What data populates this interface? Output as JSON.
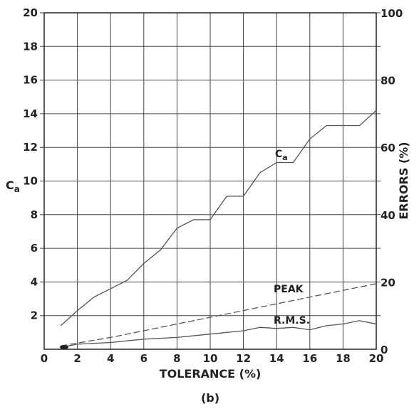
{
  "chart_data": {
    "type": "line",
    "panel_label": "(b)",
    "xlabel": "TOLERANCE (%)",
    "ylabel_left": "C",
    "ylabel_left_sub": "a",
    "ylabel_right": "ERRORS (%)",
    "xlim": [
      0,
      20
    ],
    "ylim_left": [
      0,
      20
    ],
    "ylim_right": [
      0,
      100
    ],
    "x_ticks": [
      0,
      2,
      4,
      6,
      8,
      10,
      12,
      14,
      16,
      18,
      20
    ],
    "y_left_ticks": [
      2,
      4,
      6,
      8,
      10,
      12,
      14,
      16,
      18,
      20
    ],
    "y_right_ticks": [
      0,
      20,
      40,
      60,
      80,
      100
    ],
    "grid": true,
    "series": [
      {
        "name": "C",
        "name_sub": "a",
        "axis": "left",
        "style": "solid",
        "x": [
          1,
          2,
          3,
          4,
          5,
          6,
          7,
          8,
          9,
          10,
          11,
          12,
          13,
          14,
          15,
          16,
          17,
          18,
          19,
          20
        ],
        "y": [
          1.4,
          2.3,
          3.1,
          3.6,
          4.1,
          5.1,
          5.9,
          7.2,
          7.7,
          7.7,
          9.1,
          9.1,
          10.5,
          11.1,
          11.1,
          12.5,
          13.3,
          13.3,
          13.3,
          14.2
        ]
      },
      {
        "name": "PEAK",
        "axis": "right",
        "style": "dashed",
        "x": [
          1,
          4,
          8,
          10,
          12,
          14,
          16,
          18,
          20
        ],
        "y": [
          1,
          3.5,
          7.5,
          9.5,
          11.5,
          13.5,
          15.5,
          17.5,
          19.5
        ]
      },
      {
        "name": "R.M.S.",
        "axis": "right",
        "style": "solid",
        "x": [
          1,
          2,
          4,
          6,
          8,
          10,
          12,
          13,
          14,
          15,
          16,
          17,
          18,
          19,
          20
        ],
        "y": [
          0.6,
          1.5,
          2,
          3,
          3.5,
          4.5,
          5.5,
          6.5,
          6.2,
          6.5,
          5.8,
          7,
          7.5,
          8.5,
          7.5
        ]
      }
    ],
    "colors": {
      "line": "#555555",
      "grid": "#444444",
      "text": "#222222"
    }
  }
}
